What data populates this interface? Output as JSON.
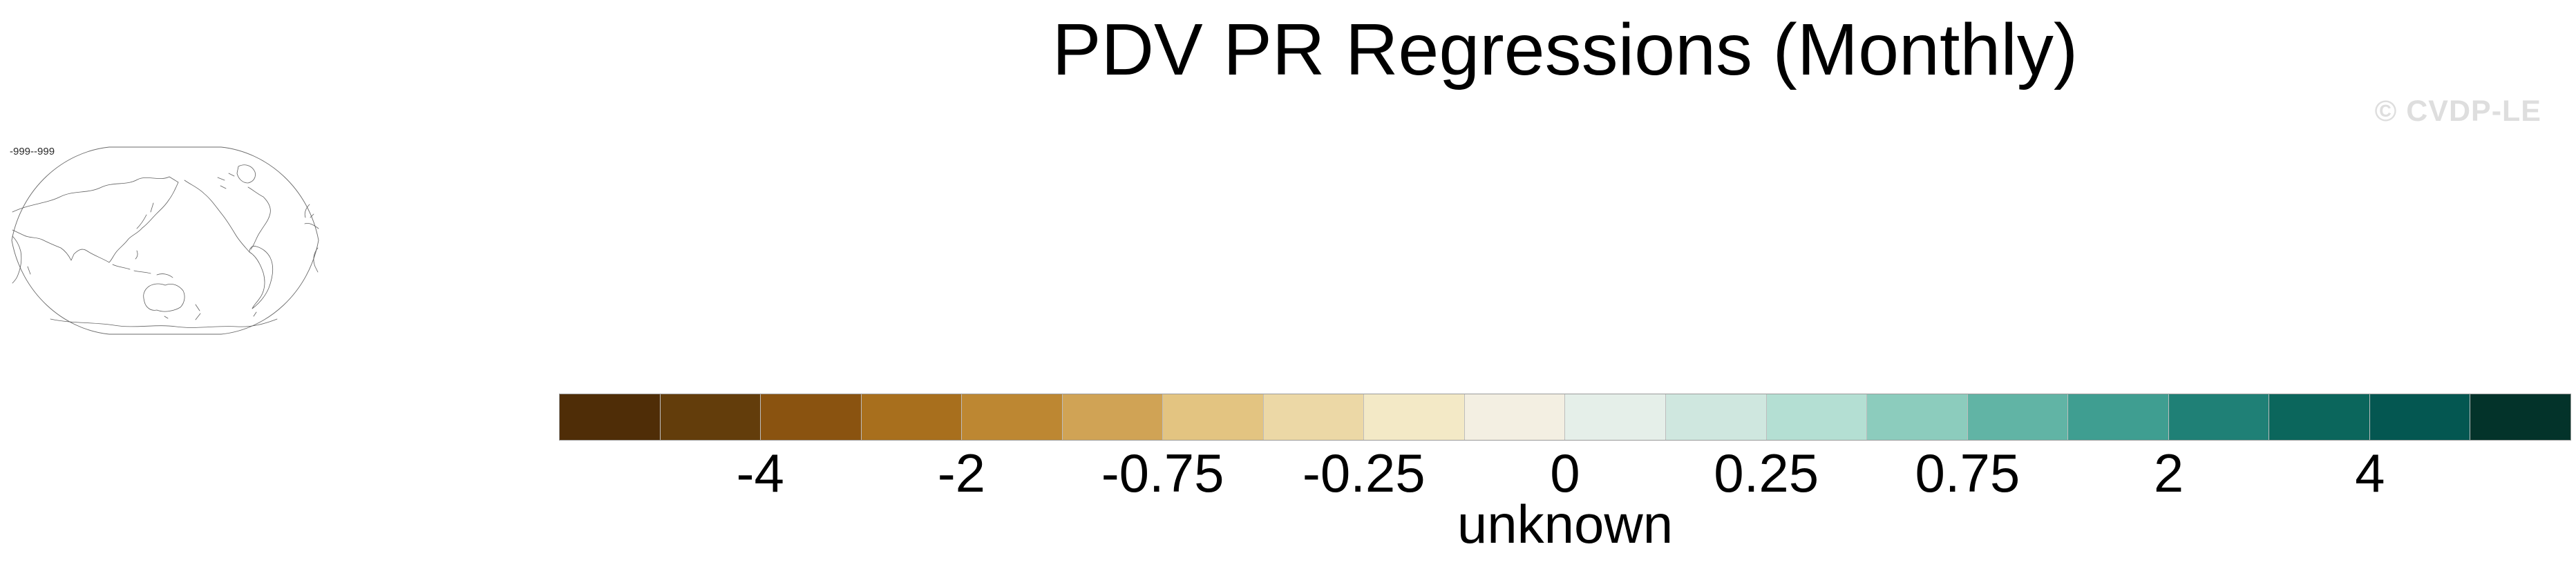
{
  "title": "PDV PR Regressions (Monthly)",
  "watermark": "© CVDP-LE",
  "map_thumbnail": {
    "range_label": "-999--999"
  },
  "colorbar": {
    "num_boxes": 20,
    "box_colors": [
      "#4f2d07",
      "#633d0b",
      "#8a5310",
      "#a86f1d",
      "#bd8732",
      "#d0a355",
      "#e3c481",
      "#ecd8a6",
      "#f3e9c6",
      "#f3efe2",
      "#e5efe9",
      "#cfe7df",
      "#b4dfd3",
      "#8cccbd",
      "#61b4a5",
      "#3f9e91",
      "#1f8076",
      "#0b665c",
      "#045751",
      "#03332a"
    ],
    "tick_labels": [
      "-4",
      "-2",
      "-0.75",
      "-0.25",
      "0",
      "0.25",
      "0.75",
      "2",
      "4"
    ],
    "tick_boundary_indices": [
      2,
      4,
      6,
      8,
      10,
      12,
      14,
      16,
      18
    ],
    "units_label": "unknown"
  },
  "colors": {
    "background": "#ffffff",
    "title_text": "#000000",
    "watermark_text": "#dedede",
    "tick_text": "#000000",
    "map_outline": "#5f5f5f",
    "bar_border": "#9a9a9a",
    "bar_separator": "#bdbdbd"
  },
  "chart_data": {
    "type": "heatmap",
    "title": "PDV PR Regressions (Monthly)",
    "subtitle": "",
    "units": "unknown",
    "legend_position": "bottom",
    "colorbar_tick_labels": [
      "-4",
      "-2",
      "-0.75",
      "-0.25",
      "0",
      "0.25",
      "0.75",
      "2",
      "4"
    ],
    "colorbar_colors": [
      "#4f2d07",
      "#633d0b",
      "#8a5310",
      "#a86f1d",
      "#bd8732",
      "#d0a355",
      "#e3c481",
      "#ecd8a6",
      "#f3e9c6",
      "#f3efe2",
      "#e5efe9",
      "#cfe7df",
      "#b4dfd3",
      "#8cccbd",
      "#61b4a5",
      "#3f9e91",
      "#1f8076",
      "#0b665c",
      "#045751",
      "#03332a"
    ],
    "map_projection": "robinson-pacific-centered",
    "map_data_range_label": "-999--999",
    "map_values": "no data shown (blank outline map)"
  }
}
